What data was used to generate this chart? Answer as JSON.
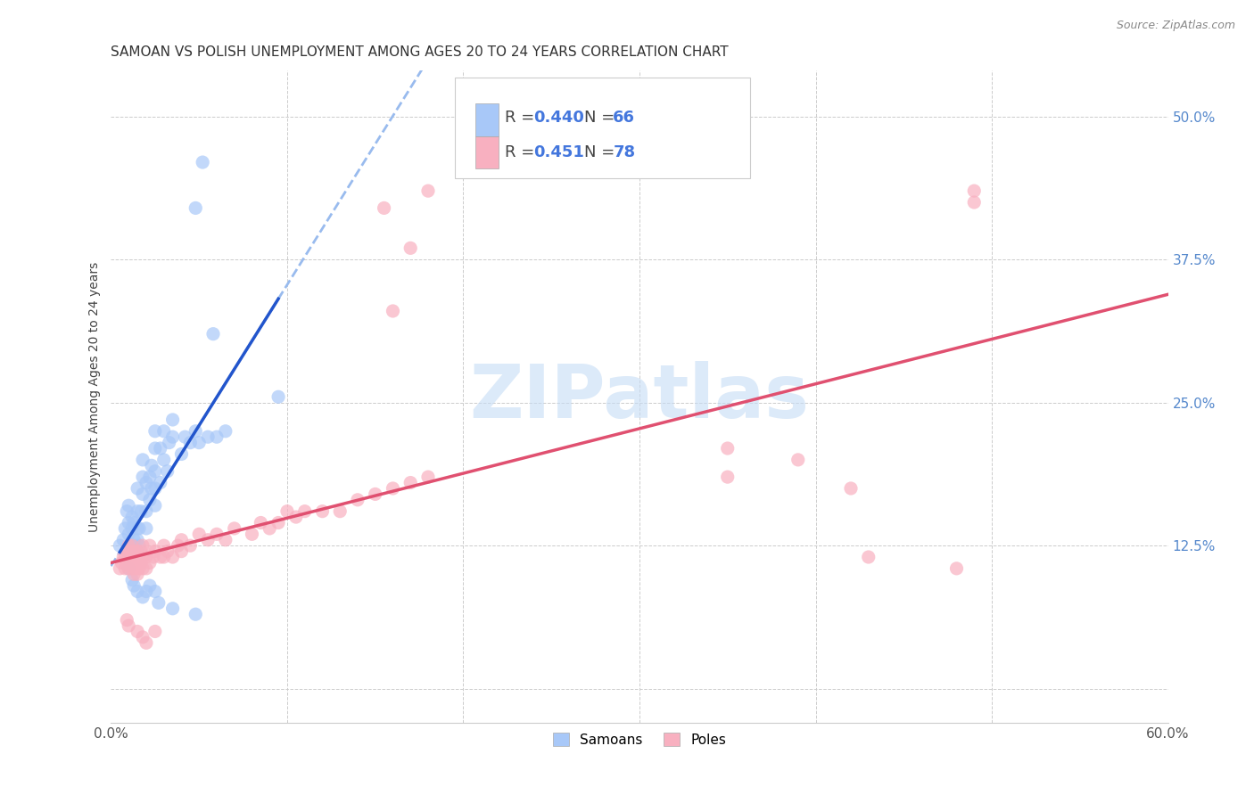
{
  "title": "SAMOAN VS POLISH UNEMPLOYMENT AMONG AGES 20 TO 24 YEARS CORRELATION CHART",
  "source": "Source: ZipAtlas.com",
  "ylabel": "Unemployment Among Ages 20 to 24 years",
  "xlim": [
    0.0,
    0.6
  ],
  "ylim": [
    -0.03,
    0.54
  ],
  "xticks": [
    0.0,
    0.1,
    0.2,
    0.3,
    0.4,
    0.5,
    0.6
  ],
  "xticklabels_show": [
    "0.0%",
    "60.0%"
  ],
  "yticks": [
    0.0,
    0.125,
    0.25,
    0.375,
    0.5
  ],
  "yticklabels": [
    "",
    "12.5%",
    "25.0%",
    "37.5%",
    "50.0%"
  ],
  "samoan_color": "#a8c8f8",
  "polish_color": "#f8b0c0",
  "trend_samoan_color": "#2255cc",
  "trend_polish_color": "#e05070",
  "trend_dashed_color": "#99bbee",
  "background_color": "#ffffff",
  "grid_color": "#cccccc",
  "watermark_color": "#c5dcf5",
  "samoan_scatter": [
    [
      0.005,
      0.125
    ],
    [
      0.007,
      0.13
    ],
    [
      0.008,
      0.14
    ],
    [
      0.009,
      0.155
    ],
    [
      0.01,
      0.12
    ],
    [
      0.01,
      0.135
    ],
    [
      0.01,
      0.145
    ],
    [
      0.01,
      0.16
    ],
    [
      0.012,
      0.125
    ],
    [
      0.012,
      0.14
    ],
    [
      0.012,
      0.15
    ],
    [
      0.013,
      0.125
    ],
    [
      0.013,
      0.13
    ],
    [
      0.013,
      0.145
    ],
    [
      0.015,
      0.13
    ],
    [
      0.015,
      0.14
    ],
    [
      0.015,
      0.155
    ],
    [
      0.015,
      0.175
    ],
    [
      0.016,
      0.125
    ],
    [
      0.016,
      0.14
    ],
    [
      0.017,
      0.155
    ],
    [
      0.018,
      0.17
    ],
    [
      0.018,
      0.185
    ],
    [
      0.018,
      0.2
    ],
    [
      0.02,
      0.14
    ],
    [
      0.02,
      0.155
    ],
    [
      0.02,
      0.18
    ],
    [
      0.022,
      0.165
    ],
    [
      0.022,
      0.185
    ],
    [
      0.023,
      0.175
    ],
    [
      0.023,
      0.195
    ],
    [
      0.025,
      0.16
    ],
    [
      0.025,
      0.175
    ],
    [
      0.025,
      0.19
    ],
    [
      0.025,
      0.21
    ],
    [
      0.025,
      0.225
    ],
    [
      0.028,
      0.18
    ],
    [
      0.028,
      0.21
    ],
    [
      0.03,
      0.2
    ],
    [
      0.03,
      0.225
    ],
    [
      0.032,
      0.19
    ],
    [
      0.033,
      0.215
    ],
    [
      0.035,
      0.22
    ],
    [
      0.035,
      0.235
    ],
    [
      0.04,
      0.205
    ],
    [
      0.042,
      0.22
    ],
    [
      0.045,
      0.215
    ],
    [
      0.048,
      0.225
    ],
    [
      0.05,
      0.215
    ],
    [
      0.055,
      0.22
    ],
    [
      0.06,
      0.22
    ],
    [
      0.065,
      0.225
    ],
    [
      0.01,
      0.105
    ],
    [
      0.012,
      0.095
    ],
    [
      0.013,
      0.09
    ],
    [
      0.015,
      0.085
    ],
    [
      0.018,
      0.08
    ],
    [
      0.02,
      0.085
    ],
    [
      0.022,
      0.09
    ],
    [
      0.025,
      0.085
    ],
    [
      0.027,
      0.075
    ],
    [
      0.035,
      0.07
    ],
    [
      0.048,
      0.065
    ],
    [
      0.048,
      0.42
    ],
    [
      0.052,
      0.46
    ],
    [
      0.058,
      0.31
    ],
    [
      0.095,
      0.255
    ]
  ],
  "polish_scatter": [
    [
      0.005,
      0.105
    ],
    [
      0.006,
      0.11
    ],
    [
      0.007,
      0.115
    ],
    [
      0.008,
      0.105
    ],
    [
      0.008,
      0.115
    ],
    [
      0.009,
      0.11
    ],
    [
      0.009,
      0.12
    ],
    [
      0.01,
      0.105
    ],
    [
      0.01,
      0.115
    ],
    [
      0.01,
      0.125
    ],
    [
      0.011,
      0.11
    ],
    [
      0.011,
      0.12
    ],
    [
      0.012,
      0.105
    ],
    [
      0.012,
      0.115
    ],
    [
      0.012,
      0.125
    ],
    [
      0.013,
      0.1
    ],
    [
      0.013,
      0.11
    ],
    [
      0.013,
      0.12
    ],
    [
      0.014,
      0.105
    ],
    [
      0.014,
      0.115
    ],
    [
      0.015,
      0.1
    ],
    [
      0.015,
      0.11
    ],
    [
      0.015,
      0.12
    ],
    [
      0.016,
      0.105
    ],
    [
      0.016,
      0.115
    ],
    [
      0.017,
      0.11
    ],
    [
      0.017,
      0.12
    ],
    [
      0.018,
      0.105
    ],
    [
      0.018,
      0.115
    ],
    [
      0.018,
      0.125
    ],
    [
      0.02,
      0.105
    ],
    [
      0.02,
      0.115
    ],
    [
      0.022,
      0.11
    ],
    [
      0.022,
      0.125
    ],
    [
      0.024,
      0.115
    ],
    [
      0.025,
      0.12
    ],
    [
      0.028,
      0.115
    ],
    [
      0.03,
      0.115
    ],
    [
      0.03,
      0.125
    ],
    [
      0.032,
      0.12
    ],
    [
      0.035,
      0.115
    ],
    [
      0.038,
      0.125
    ],
    [
      0.04,
      0.12
    ],
    [
      0.04,
      0.13
    ],
    [
      0.045,
      0.125
    ],
    [
      0.05,
      0.135
    ],
    [
      0.055,
      0.13
    ],
    [
      0.06,
      0.135
    ],
    [
      0.065,
      0.13
    ],
    [
      0.07,
      0.14
    ],
    [
      0.08,
      0.135
    ],
    [
      0.085,
      0.145
    ],
    [
      0.09,
      0.14
    ],
    [
      0.095,
      0.145
    ],
    [
      0.1,
      0.155
    ],
    [
      0.105,
      0.15
    ],
    [
      0.11,
      0.155
    ],
    [
      0.12,
      0.155
    ],
    [
      0.13,
      0.155
    ],
    [
      0.14,
      0.165
    ],
    [
      0.15,
      0.17
    ],
    [
      0.16,
      0.175
    ],
    [
      0.17,
      0.18
    ],
    [
      0.18,
      0.185
    ],
    [
      0.009,
      0.06
    ],
    [
      0.01,
      0.055
    ],
    [
      0.015,
      0.05
    ],
    [
      0.018,
      0.045
    ],
    [
      0.02,
      0.04
    ],
    [
      0.025,
      0.05
    ],
    [
      0.17,
      0.385
    ],
    [
      0.18,
      0.435
    ],
    [
      0.155,
      0.42
    ],
    [
      0.16,
      0.33
    ],
    [
      0.35,
      0.21
    ],
    [
      0.35,
      0.185
    ],
    [
      0.39,
      0.2
    ],
    [
      0.42,
      0.175
    ],
    [
      0.43,
      0.115
    ],
    [
      0.48,
      0.105
    ],
    [
      0.49,
      0.425
    ],
    [
      0.49,
      0.435
    ]
  ],
  "title_fontsize": 11,
  "axis_label_fontsize": 10,
  "tick_fontsize": 11,
  "legend_fontsize": 13
}
